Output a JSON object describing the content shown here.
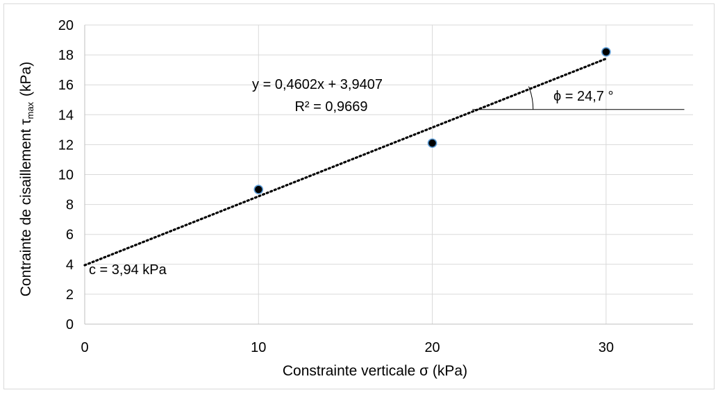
{
  "chart_data": {
    "type": "scatter",
    "title": "",
    "xlabel": "Constrainte verticale σ (kPa)",
    "ylabel": {
      "prefix": "Contrainte de cisaillement τ",
      "subscript": "max",
      "suffix": "(kPa)"
    },
    "xlim": [
      0,
      35
    ],
    "ylim": [
      0,
      20
    ],
    "x_ticks": [
      0,
      10,
      20,
      30
    ],
    "y_ticks": [
      0,
      2,
      4,
      6,
      8,
      10,
      12,
      14,
      16,
      18,
      20
    ],
    "grid": true,
    "legend": "none",
    "series": [
      {
        "x": [
          10,
          20,
          30
        ],
        "y": [
          9.0,
          12.1,
          18.2
        ]
      }
    ],
    "trendline": {
      "type": "linear",
      "slope": 0.4602,
      "intercept": 3.9407,
      "x_range": [
        0,
        30
      ],
      "style": "dotted"
    },
    "annotations": {
      "equation": "y = 0,4602x + 3,9407",
      "r_squared": "R² = 0,9669",
      "cohesion": "c = 3,94 kPa",
      "friction_angle": "ϕ = 24,7 °"
    },
    "colors": {
      "marker_fill": "#000000",
      "marker_edge": "#5b9bd5",
      "grid": "#d9d9d9",
      "axis": "#bfbfbf",
      "trendline": "#000000"
    }
  }
}
